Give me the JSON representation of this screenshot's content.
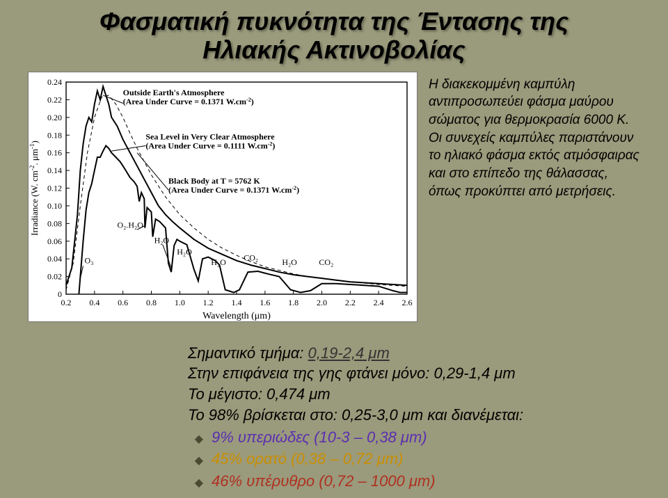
{
  "title_line1": "Φασματική πυκνότητα της Έντασης της",
  "title_line2": "Ηλιακής Ακτινοβολίας",
  "side_paragraph": "Η διακεκομμένη καμπύλη αντιπροσωπεύει φάσμα μαύρου σώματος για θερμοκρασία 6000 Κ. Οι συνεχείς καμπύλες παριστάνουν το ηλιακό φάσμα εκτός ατμόσφαιρας και στο επίπεδο της θάλασσας, όπως προκύπτει από μετρήσεις.",
  "segment_label": "Σημαντικό τμήμα:",
  "segment_value": "0,19-2,4 μm",
  "surface_line": "Στην επιφάνεια της γης φτάνει μόνο: 0,29-1,4 μm",
  "max_line": "Το μέγιστο: 0,474 μm",
  "p98_line": "Το 98% βρίσκεται στο: 0,25-3,0 μm και διανέμεται:",
  "bands": [
    {
      "text": "9% υπεριώδες (10-3 – 0,38 μm)",
      "cls": "uv"
    },
    {
      "text": "45% ορατό (0,38 – 0,72 μm)",
      "cls": "vis"
    },
    {
      "text": "46% υπέρυθρο (0,72 – 1000 μm)",
      "cls": "ir"
    }
  ],
  "chart": {
    "type": "line",
    "background_color": "#ffffff",
    "axis_color": "#000000",
    "xlabel": "Wavelength (μm)",
    "ylabel_1": "Irradiance (W. cm",
    "ylabel_2": "-2",
    "ylabel_3": ". μm",
    "ylabel_4": "-1",
    "ylabel_5": ")",
    "xlim": [
      0.2,
      2.6
    ],
    "ylim": [
      0,
      0.24
    ],
    "xticks": [
      0.2,
      0.4,
      0.6,
      0.8,
      1.0,
      1.2,
      1.4,
      1.6,
      1.8,
      2.0,
      2.2,
      2.4,
      2.6
    ],
    "yticks": [
      0,
      0.02,
      0.04,
      0.06,
      0.08,
      0.1,
      0.12,
      0.14,
      0.16,
      0.18,
      0.2,
      0.22,
      0.24
    ],
    "annotations": {
      "outside": {
        "l1": "Outside Earth's Atmosphere",
        "l2": "(Area Under Curve = 0.1371 W.cm",
        "sup": "-2",
        "l3": ")"
      },
      "sealevel": {
        "l1": "Sea Level in Very Clear Atmosphere",
        "l2": "(Area Under Curve = 0.1111 W.cm",
        "sup": "-2",
        "l3": ")"
      },
      "blackbody": {
        "l1": "Black Body at T = 5762 K",
        "l2": "(Area Under Curve = 0.1371 W.cm",
        "sup": "-2",
        "l3": ")"
      },
      "absorbers": {
        "o3": "O₃",
        "o2h2o1": "O₂.H₂O",
        "h2o1": "H₂O",
        "h2o2": "H₂O",
        "h2o3": "H₂O",
        "co2": "CO₂",
        "h2o4": "H₂O",
        "co22": "CO₂"
      }
    },
    "series": {
      "extraterrestrial": {
        "color": "#000000",
        "width": 2,
        "points": [
          [
            0.2,
            0.01
          ],
          [
            0.24,
            0.03
          ],
          [
            0.26,
            0.06
          ],
          [
            0.28,
            0.09
          ],
          [
            0.3,
            0.14
          ],
          [
            0.32,
            0.17
          ],
          [
            0.34,
            0.19
          ],
          [
            0.36,
            0.2
          ],
          [
            0.38,
            0.195
          ],
          [
            0.4,
            0.215
          ],
          [
            0.42,
            0.23
          ],
          [
            0.44,
            0.22
          ],
          [
            0.46,
            0.235
          ],
          [
            0.48,
            0.225
          ],
          [
            0.5,
            0.215
          ],
          [
            0.52,
            0.2
          ],
          [
            0.56,
            0.19
          ],
          [
            0.6,
            0.175
          ],
          [
            0.65,
            0.16
          ],
          [
            0.7,
            0.145
          ],
          [
            0.75,
            0.13
          ],
          [
            0.8,
            0.115
          ],
          [
            0.85,
            0.1
          ],
          [
            0.9,
            0.09
          ],
          [
            0.95,
            0.082
          ],
          [
            1.0,
            0.075
          ],
          [
            1.1,
            0.062
          ],
          [
            1.2,
            0.052
          ],
          [
            1.3,
            0.045
          ],
          [
            1.4,
            0.038
          ],
          [
            1.5,
            0.033
          ],
          [
            1.6,
            0.029
          ],
          [
            1.7,
            0.025
          ],
          [
            1.8,
            0.022
          ],
          [
            1.9,
            0.02
          ],
          [
            2.0,
            0.018
          ],
          [
            2.1,
            0.016
          ],
          [
            2.2,
            0.014
          ],
          [
            2.3,
            0.013
          ],
          [
            2.4,
            0.012
          ],
          [
            2.5,
            0.011
          ],
          [
            2.6,
            0.01
          ]
        ]
      },
      "blackbody": {
        "color": "#000000",
        "width": 1,
        "dash": "5,4",
        "points": [
          [
            0.2,
            0.005
          ],
          [
            0.25,
            0.035
          ],
          [
            0.3,
            0.1
          ],
          [
            0.35,
            0.16
          ],
          [
            0.4,
            0.2
          ],
          [
            0.45,
            0.223
          ],
          [
            0.5,
            0.225
          ],
          [
            0.55,
            0.215
          ],
          [
            0.6,
            0.2
          ],
          [
            0.65,
            0.182
          ],
          [
            0.7,
            0.165
          ],
          [
            0.8,
            0.135
          ],
          [
            0.9,
            0.11
          ],
          [
            1.0,
            0.09
          ],
          [
            1.1,
            0.075
          ],
          [
            1.2,
            0.062
          ],
          [
            1.3,
            0.052
          ],
          [
            1.4,
            0.044
          ],
          [
            1.5,
            0.037
          ],
          [
            1.6,
            0.031
          ],
          [
            1.7,
            0.027
          ],
          [
            1.8,
            0.023
          ],
          [
            1.9,
            0.02
          ],
          [
            2.0,
            0.018
          ],
          [
            2.2,
            0.014
          ],
          [
            2.4,
            0.011
          ],
          [
            2.6,
            0.009
          ]
        ]
      },
      "sealevel": {
        "color": "#000000",
        "width": 2,
        "points": [
          [
            0.29,
            0.0
          ],
          [
            0.3,
            0.02
          ],
          [
            0.32,
            0.06
          ],
          [
            0.34,
            0.095
          ],
          [
            0.36,
            0.115
          ],
          [
            0.38,
            0.125
          ],
          [
            0.4,
            0.14
          ],
          [
            0.42,
            0.155
          ],
          [
            0.44,
            0.155
          ],
          [
            0.46,
            0.162
          ],
          [
            0.48,
            0.168
          ],
          [
            0.5,
            0.165
          ],
          [
            0.52,
            0.16
          ],
          [
            0.55,
            0.155
          ],
          [
            0.58,
            0.15
          ],
          [
            0.6,
            0.145
          ],
          [
            0.62,
            0.14
          ],
          [
            0.65,
            0.132
          ],
          [
            0.68,
            0.127
          ],
          [
            0.7,
            0.122
          ],
          [
            0.715,
            0.105
          ],
          [
            0.73,
            0.115
          ],
          [
            0.75,
            0.108
          ],
          [
            0.755,
            0.075
          ],
          [
            0.77,
            0.098
          ],
          [
            0.8,
            0.093
          ],
          [
            0.81,
            0.065
          ],
          [
            0.83,
            0.085
          ],
          [
            0.86,
            0.082
          ],
          [
            0.9,
            0.075
          ],
          [
            0.92,
            0.035
          ],
          [
            0.94,
            0.025
          ],
          [
            0.96,
            0.055
          ],
          [
            0.98,
            0.062
          ],
          [
            1.0,
            0.06
          ],
          [
            1.05,
            0.056
          ],
          [
            1.1,
            0.028
          ],
          [
            1.13,
            0.015
          ],
          [
            1.16,
            0.04
          ],
          [
            1.2,
            0.042
          ],
          [
            1.25,
            0.038
          ],
          [
            1.28,
            0.033
          ],
          [
            1.32,
            0.005
          ],
          [
            1.38,
            0.002
          ],
          [
            1.42,
            0.005
          ],
          [
            1.48,
            0.025
          ],
          [
            1.55,
            0.026
          ],
          [
            1.62,
            0.023
          ],
          [
            1.7,
            0.02
          ],
          [
            1.78,
            0.005
          ],
          [
            1.85,
            0.002
          ],
          [
            1.92,
            0.004
          ],
          [
            2.0,
            0.012
          ],
          [
            2.1,
            0.012
          ],
          [
            2.2,
            0.011
          ],
          [
            2.3,
            0.01
          ],
          [
            2.4,
            0.009
          ],
          [
            2.5,
            0.004
          ],
          [
            2.55,
            0.002
          ],
          [
            2.6,
            0.002
          ]
        ]
      }
    }
  }
}
